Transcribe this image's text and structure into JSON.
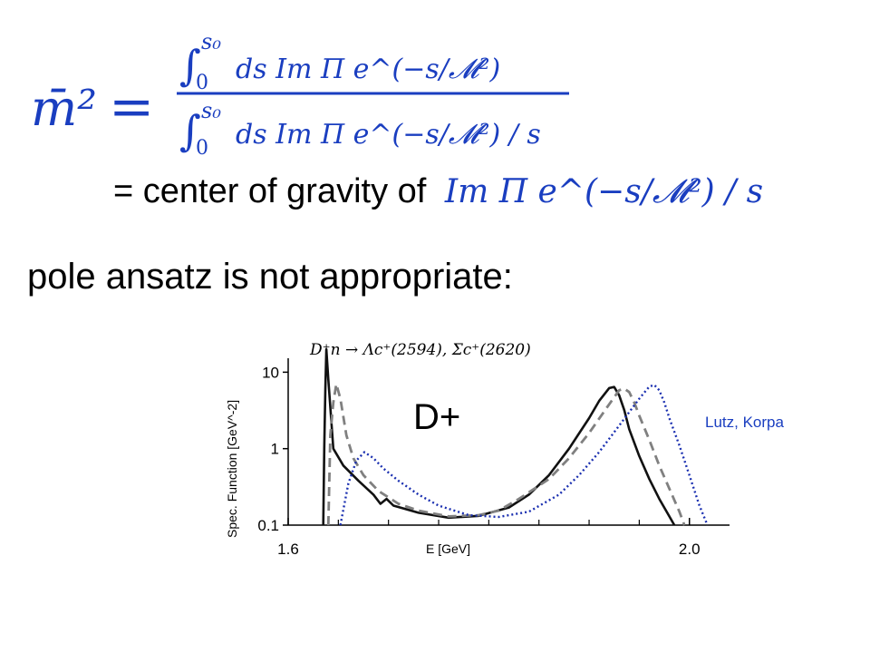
{
  "formula": {
    "lhs": "m̄²",
    "equals": "=",
    "integral_upper": "s₀",
    "integral_lower": "0",
    "numerator_integrand": "ds Im Π e^(−s/𝓜²)",
    "denominator_integrand": "ds Im Π e^(−s/𝓜²) / s"
  },
  "text": {
    "center_of_gravity": "= center of gravity of",
    "center_of_gravity_expr": "Im Π e^(−s/𝓜²) / s",
    "pole_ansatz": "pole ansatz is not appropriate:",
    "credit": "Lutz, Korpa"
  },
  "chart_data": {
    "type": "line",
    "title": "D⁺n → Λc⁺(2594), Σc⁺(2620)",
    "annotation": "D+",
    "xlabel": "E [GeV]",
    "ylabel": "Spec. Function [GeV^-2]",
    "x_ticks": [
      "1.6",
      "2.0"
    ],
    "y_ticks": [
      "0.1",
      "1",
      "10"
    ],
    "xlim": [
      1.6,
      2.04
    ],
    "ylim": [
      0.1,
      20
    ],
    "yscale": "log",
    "series": [
      {
        "style": "solid",
        "color": "#111111",
        "x": [
          1.635,
          1.636,
          1.637,
          1.638,
          1.64,
          1.645,
          1.655,
          1.67,
          1.685,
          1.692,
          1.698,
          1.705,
          1.73,
          1.76,
          1.79,
          1.82,
          1.84,
          1.86,
          1.88,
          1.9,
          1.91,
          1.92,
          1.925,
          1.93,
          1.935,
          1.94,
          1.95,
          1.96,
          1.97,
          1.98,
          1.985
        ],
        "y": [
          0.1,
          1.0,
          6.0,
          20,
          8,
          1.0,
          0.6,
          0.38,
          0.25,
          0.19,
          0.22,
          0.18,
          0.145,
          0.125,
          0.132,
          0.17,
          0.25,
          0.45,
          1.0,
          2.5,
          4.2,
          6.2,
          6.4,
          5.0,
          3.2,
          1.8,
          0.8,
          0.4,
          0.22,
          0.13,
          0.1
        ]
      },
      {
        "style": "dashed",
        "color": "#808080",
        "x": [
          1.64,
          1.642,
          1.645,
          1.648,
          1.652,
          1.658,
          1.665,
          1.675,
          1.69,
          1.71,
          1.73,
          1.76,
          1.79,
          1.81,
          1.83,
          1.86,
          1.88,
          1.9,
          1.92,
          1.93,
          1.935,
          1.94,
          1.945,
          1.95,
          1.96,
          1.97,
          1.98,
          1.99,
          1.995
        ],
        "y": [
          0.1,
          1.5,
          4.0,
          7.0,
          4.5,
          1.5,
          0.75,
          0.45,
          0.28,
          0.19,
          0.155,
          0.13,
          0.135,
          0.155,
          0.22,
          0.4,
          0.75,
          1.6,
          3.8,
          5.8,
          6.1,
          5.5,
          4.0,
          2.7,
          1.3,
          0.6,
          0.3,
          0.15,
          0.1
        ]
      },
      {
        "style": "dotted",
        "color": "#1a2fb0",
        "x": [
          1.652,
          1.66,
          1.668,
          1.676,
          1.685,
          1.695,
          1.71,
          1.73,
          1.75,
          1.78,
          1.81,
          1.84,
          1.87,
          1.89,
          1.91,
          1.93,
          1.95,
          1.96,
          1.965,
          1.97,
          1.975,
          1.98,
          1.99,
          2.0,
          2.01,
          2.018
        ],
        "y": [
          0.1,
          0.35,
          0.7,
          0.9,
          0.75,
          0.55,
          0.38,
          0.25,
          0.18,
          0.135,
          0.128,
          0.15,
          0.25,
          0.45,
          0.9,
          2.0,
          4.5,
          6.5,
          6.8,
          5.8,
          4.0,
          2.5,
          1.1,
          0.45,
          0.18,
          0.1
        ]
      }
    ]
  }
}
